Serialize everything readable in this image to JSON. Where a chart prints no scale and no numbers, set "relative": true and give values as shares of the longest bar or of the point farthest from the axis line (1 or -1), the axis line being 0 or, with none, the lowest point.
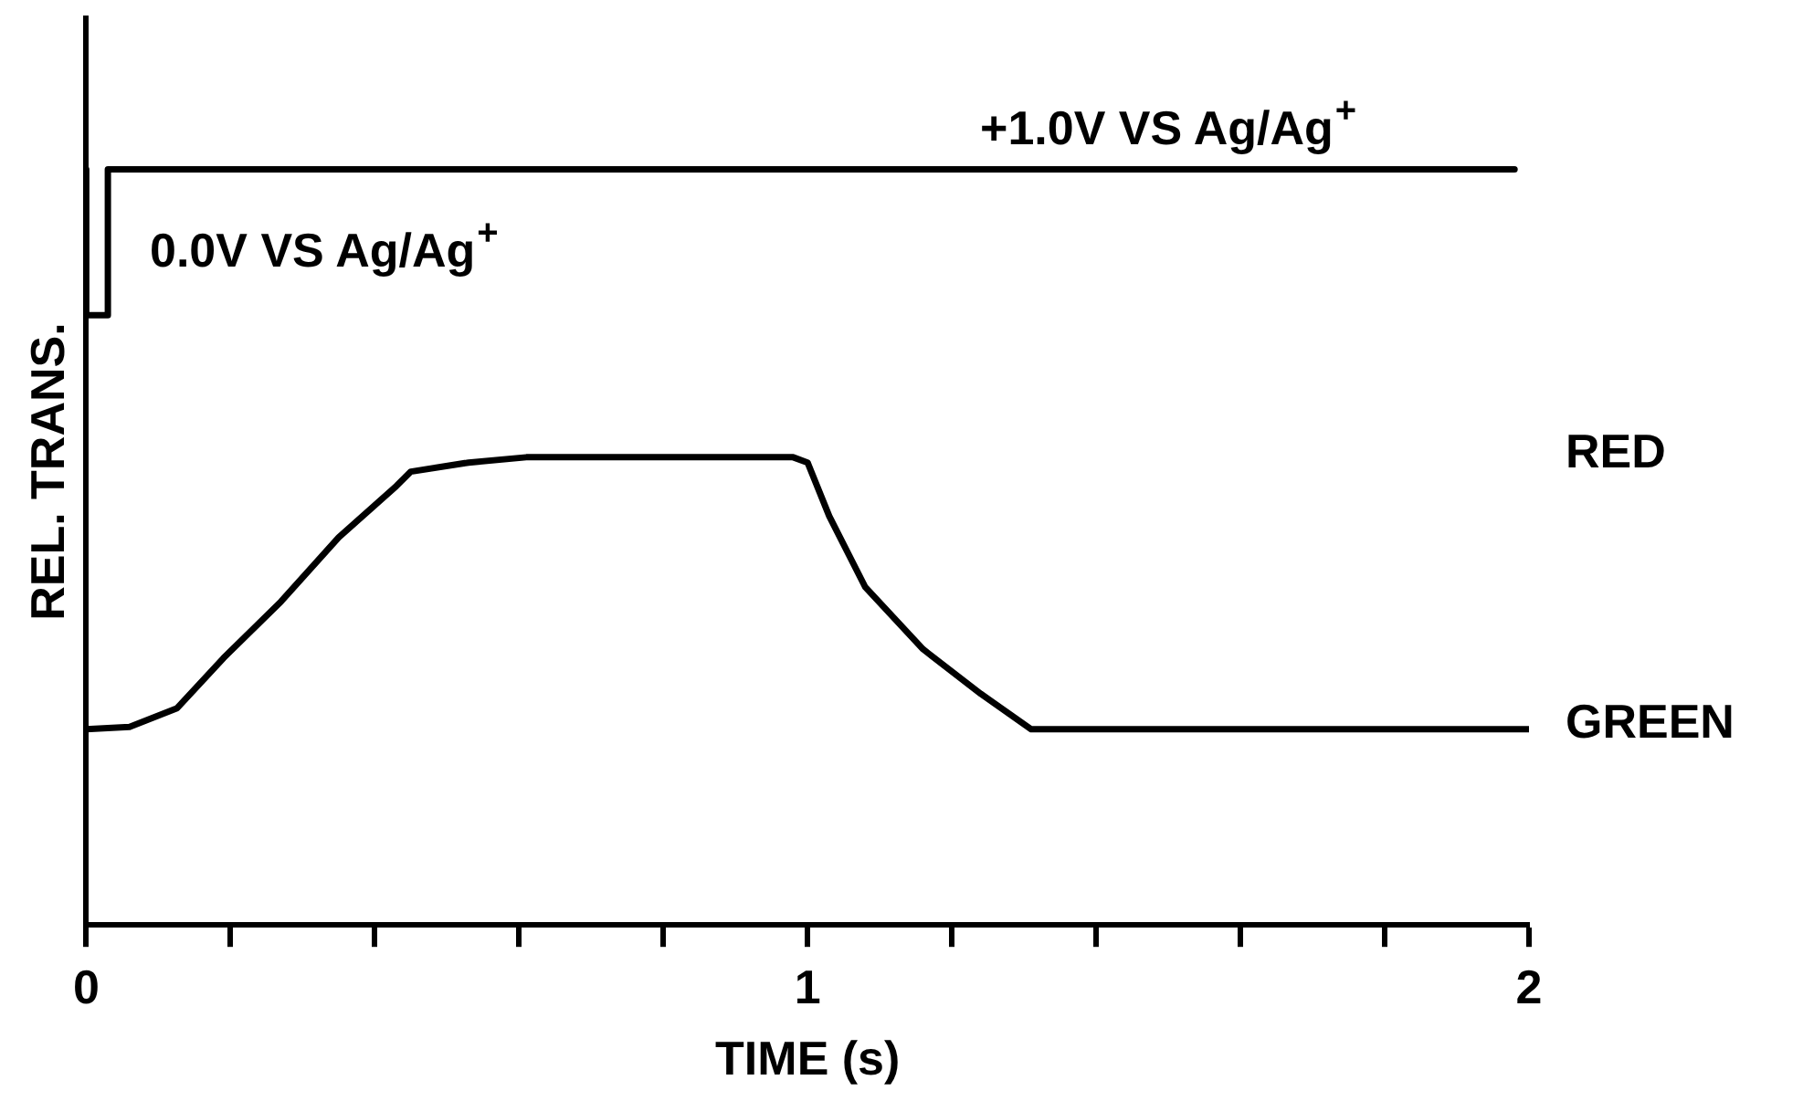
{
  "chart_data": {
    "type": "line",
    "relative": true,
    "xlabel": "TIME (s)",
    "ylabel": "REL. TRANS.",
    "xlim": [
      0,
      2
    ],
    "xticks": [
      0,
      {
        "value": 0.2,
        "label": null
      },
      {
        "value": 0.4,
        "label": null
      },
      {
        "value": 0.6,
        "label": null
      },
      {
        "value": 0.8,
        "label": null
      },
      1,
      {
        "value": 1.2,
        "label": null
      },
      {
        "value": 1.4,
        "label": null
      },
      {
        "value": 1.6,
        "label": null
      },
      {
        "value": 1.8,
        "label": null
      },
      2
    ],
    "marker": "none",
    "legend": false,
    "grid": false,
    "series": [
      {
        "type": "step",
        "color": "#000000",
        "x": [
          0,
          0.03,
          1,
          1.98
        ],
        "values": [
          1,
          0.807,
          1,
          1
        ]
      },
      {
        "type": "line",
        "color": "#000000",
        "x": [
          0,
          0.06,
          0.126,
          0.19,
          0.27,
          0.35,
          0.43,
          0.45,
          0.53,
          0.61,
          0.98,
          1.0,
          1.03,
          1.08,
          1.16,
          1.24,
          1.31,
          2.0
        ],
        "values": [
          0.259,
          0.262,
          0.287,
          0.353,
          0.428,
          0.513,
          0.581,
          0.6,
          0.612,
          0.619,
          0.619,
          0.612,
          0.541,
          0.447,
          0.365,
          0.306,
          0.259,
          0.259
        ]
      }
    ],
    "annotations": [
      "0.0V VS Ag/Ag$^{+}$",
      {
        "text": "+1.0V VS Ag/Ag$^{+}$",
        "x": 1.5,
        "y": 1
      },
      "RED",
      "GREEN"
    ]
  }
}
